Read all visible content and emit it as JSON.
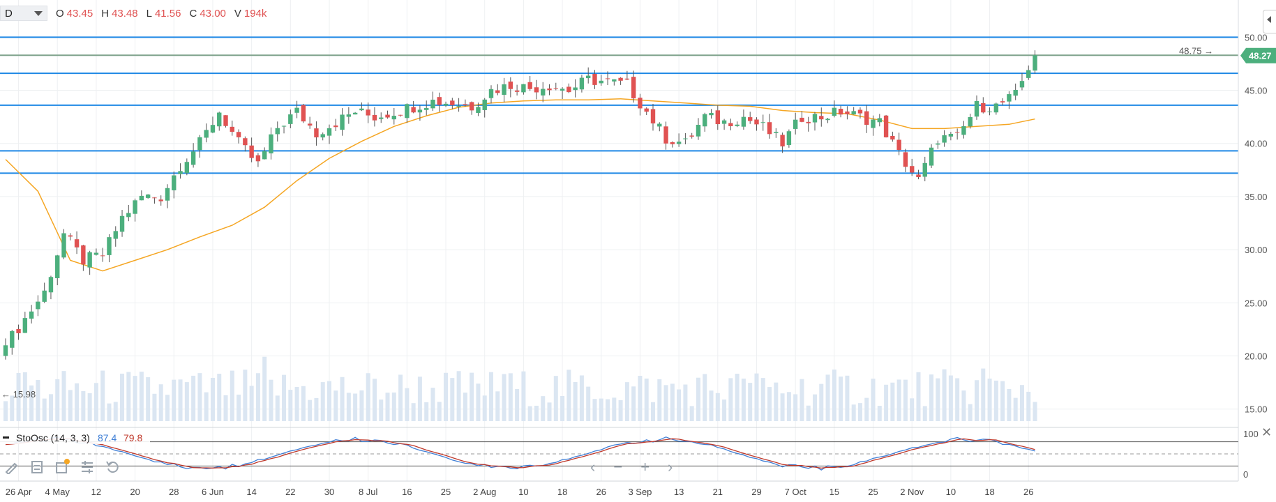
{
  "header": {
    "interval": "D",
    "ohlc": [
      {
        "key": "O",
        "value": "43.45"
      },
      {
        "key": "H",
        "value": "43.48"
      },
      {
        "key": "L",
        "value": "41.56"
      },
      {
        "key": "C",
        "value": "43.00"
      },
      {
        "key": "V",
        "value": "194k"
      }
    ]
  },
  "chart_data": {
    "type": "candlestick",
    "price_axis": {
      "ticks": [
        "50.00",
        "45.00",
        "40.00",
        "35.00",
        "30.00",
        "25.00",
        "20.00",
        "15.00"
      ],
      "ylim": [
        13.8,
        51.4
      ],
      "last_price": "48.27",
      "last_price_value": 48.27
    },
    "labels": {
      "high_marker": "48.75 →",
      "high_value": 48.75,
      "low_marker": "← 15.98",
      "low_value": 15.98
    },
    "x_axis": {
      "ticks": [
        {
          "label": "26 Apr",
          "index": 2
        },
        {
          "label": "4 May",
          "index": 8
        },
        {
          "label": "12",
          "index": 14
        },
        {
          "label": "20",
          "index": 20
        },
        {
          "label": "28",
          "index": 26
        },
        {
          "label": "6 Jun",
          "index": 32
        },
        {
          "label": "14",
          "index": 38
        },
        {
          "label": "22",
          "index": 44
        },
        {
          "label": "30",
          "index": 50
        },
        {
          "label": "8 Jul",
          "index": 56
        },
        {
          "label": "16",
          "index": 62
        },
        {
          "label": "25",
          "index": 68
        },
        {
          "label": "2 Aug",
          "index": 74
        },
        {
          "label": "10",
          "index": 80
        },
        {
          "label": "18",
          "index": 86
        },
        {
          "label": "26",
          "index": 92
        },
        {
          "label": "3 Sep",
          "index": 98
        },
        {
          "label": "13",
          "index": 104
        },
        {
          "label": "21",
          "index": 110
        },
        {
          "label": "29",
          "index": 116
        },
        {
          "label": "7 Oct",
          "index": 122
        },
        {
          "label": "15",
          "index": 128
        },
        {
          "label": "25",
          "index": 134
        },
        {
          "label": "2 Nov",
          "index": 140
        },
        {
          "label": "10",
          "index": 146
        },
        {
          "label": "18",
          "index": 152
        },
        {
          "label": "26",
          "index": 158
        }
      ]
    },
    "horizontal_lines": [
      {
        "value": 50.0,
        "color": "#1e88e5"
      },
      {
        "value": 46.6,
        "color": "#1e88e5"
      },
      {
        "value": 43.6,
        "color": "#1e88e5"
      },
      {
        "value": 39.3,
        "color": "#1e88e5"
      },
      {
        "value": 37.2,
        "color": "#1e88e5"
      },
      {
        "value": 48.3,
        "color": "#7fa38c"
      }
    ],
    "moving_average": {
      "color": "#f5a623",
      "points": [
        [
          0,
          38.5
        ],
        [
          5,
          35.5
        ],
        [
          10,
          29.0
        ],
        [
          15,
          28.0
        ],
        [
          20,
          29.0
        ],
        [
          25,
          30.0
        ],
        [
          30,
          31.2
        ],
        [
          35,
          32.3
        ],
        [
          40,
          34.0
        ],
        [
          45,
          36.5
        ],
        [
          50,
          38.6
        ],
        [
          55,
          40.2
        ],
        [
          60,
          41.6
        ],
        [
          65,
          42.6
        ],
        [
          70,
          43.4
        ],
        [
          75,
          43.8
        ],
        [
          80,
          44.0
        ],
        [
          85,
          44.1
        ],
        [
          90,
          44.1
        ],
        [
          95,
          44.2
        ],
        [
          100,
          44.0
        ],
        [
          105,
          43.8
        ],
        [
          110,
          43.6
        ],
        [
          115,
          43.5
        ],
        [
          120,
          43.1
        ],
        [
          125,
          42.9
        ],
        [
          130,
          42.8
        ],
        [
          135,
          42.2
        ],
        [
          140,
          41.4
        ],
        [
          145,
          41.4
        ],
        [
          150,
          41.6
        ],
        [
          155,
          41.8
        ],
        [
          159,
          42.3
        ]
      ]
    },
    "anchors": [
      [
        0,
        21.0
      ],
      [
        3,
        23.5
      ],
      [
        6,
        26.0
      ],
      [
        9,
        31.5
      ],
      [
        12,
        29.0
      ],
      [
        15,
        29.5
      ],
      [
        18,
        33.0
      ],
      [
        21,
        35.0
      ],
      [
        24,
        35.0
      ],
      [
        27,
        38.0
      ],
      [
        30,
        40.0
      ],
      [
        33,
        43.0
      ],
      [
        36,
        40.0
      ],
      [
        39,
        38.0
      ],
      [
        42,
        41.5
      ],
      [
        45,
        43.0
      ],
      [
        48,
        41.0
      ],
      [
        51,
        42.0
      ],
      [
        54,
        43.0
      ],
      [
        57,
        42.5
      ],
      [
        60,
        43.0
      ],
      [
        63,
        43.5
      ],
      [
        66,
        44.0
      ],
      [
        69,
        43.8
      ],
      [
        72,
        43.5
      ],
      [
        75,
        45.0
      ],
      [
        78,
        45.5
      ],
      [
        81,
        45.2
      ],
      [
        84,
        45.5
      ],
      [
        87,
        45.0
      ],
      [
        90,
        46.0
      ],
      [
        93,
        45.8
      ],
      [
        96,
        45.5
      ],
      [
        99,
        43.0
      ],
      [
        102,
        40.5
      ],
      [
        105,
        40.0
      ],
      [
        108,
        42.5
      ],
      [
        111,
        42.0
      ],
      [
        114,
        42.5
      ],
      [
        117,
        41.5
      ],
      [
        120,
        40.0
      ],
      [
        123,
        42.5
      ],
      [
        126,
        42.5
      ],
      [
        129,
        43.0
      ],
      [
        132,
        42.5
      ],
      [
        135,
        42.0
      ],
      [
        138,
        39.0
      ],
      [
        141,
        36.5
      ],
      [
        144,
        40.5
      ],
      [
        147,
        40.5
      ],
      [
        150,
        43.5
      ],
      [
        153,
        43.5
      ],
      [
        156,
        44.5
      ],
      [
        158,
        47.2
      ],
      [
        159,
        48.3
      ]
    ],
    "candles": {
      "count": 160,
      "colors": {
        "up": "#4caf7d",
        "down": "#e05252",
        "wick": "#555555"
      }
    },
    "volume": {
      "color": "#dbe6f2",
      "scale_max": 1.0
    },
    "stochastic": {
      "label": "StoOsc (14, 3, 3)",
      "k_value": "87.4",
      "d_value": "79.8",
      "k_color": "#3f7fd6",
      "d_color": "#c0392b",
      "axis_labels": [
        "100",
        "0"
      ],
      "levels": [
        80,
        50,
        20
      ]
    }
  }
}
